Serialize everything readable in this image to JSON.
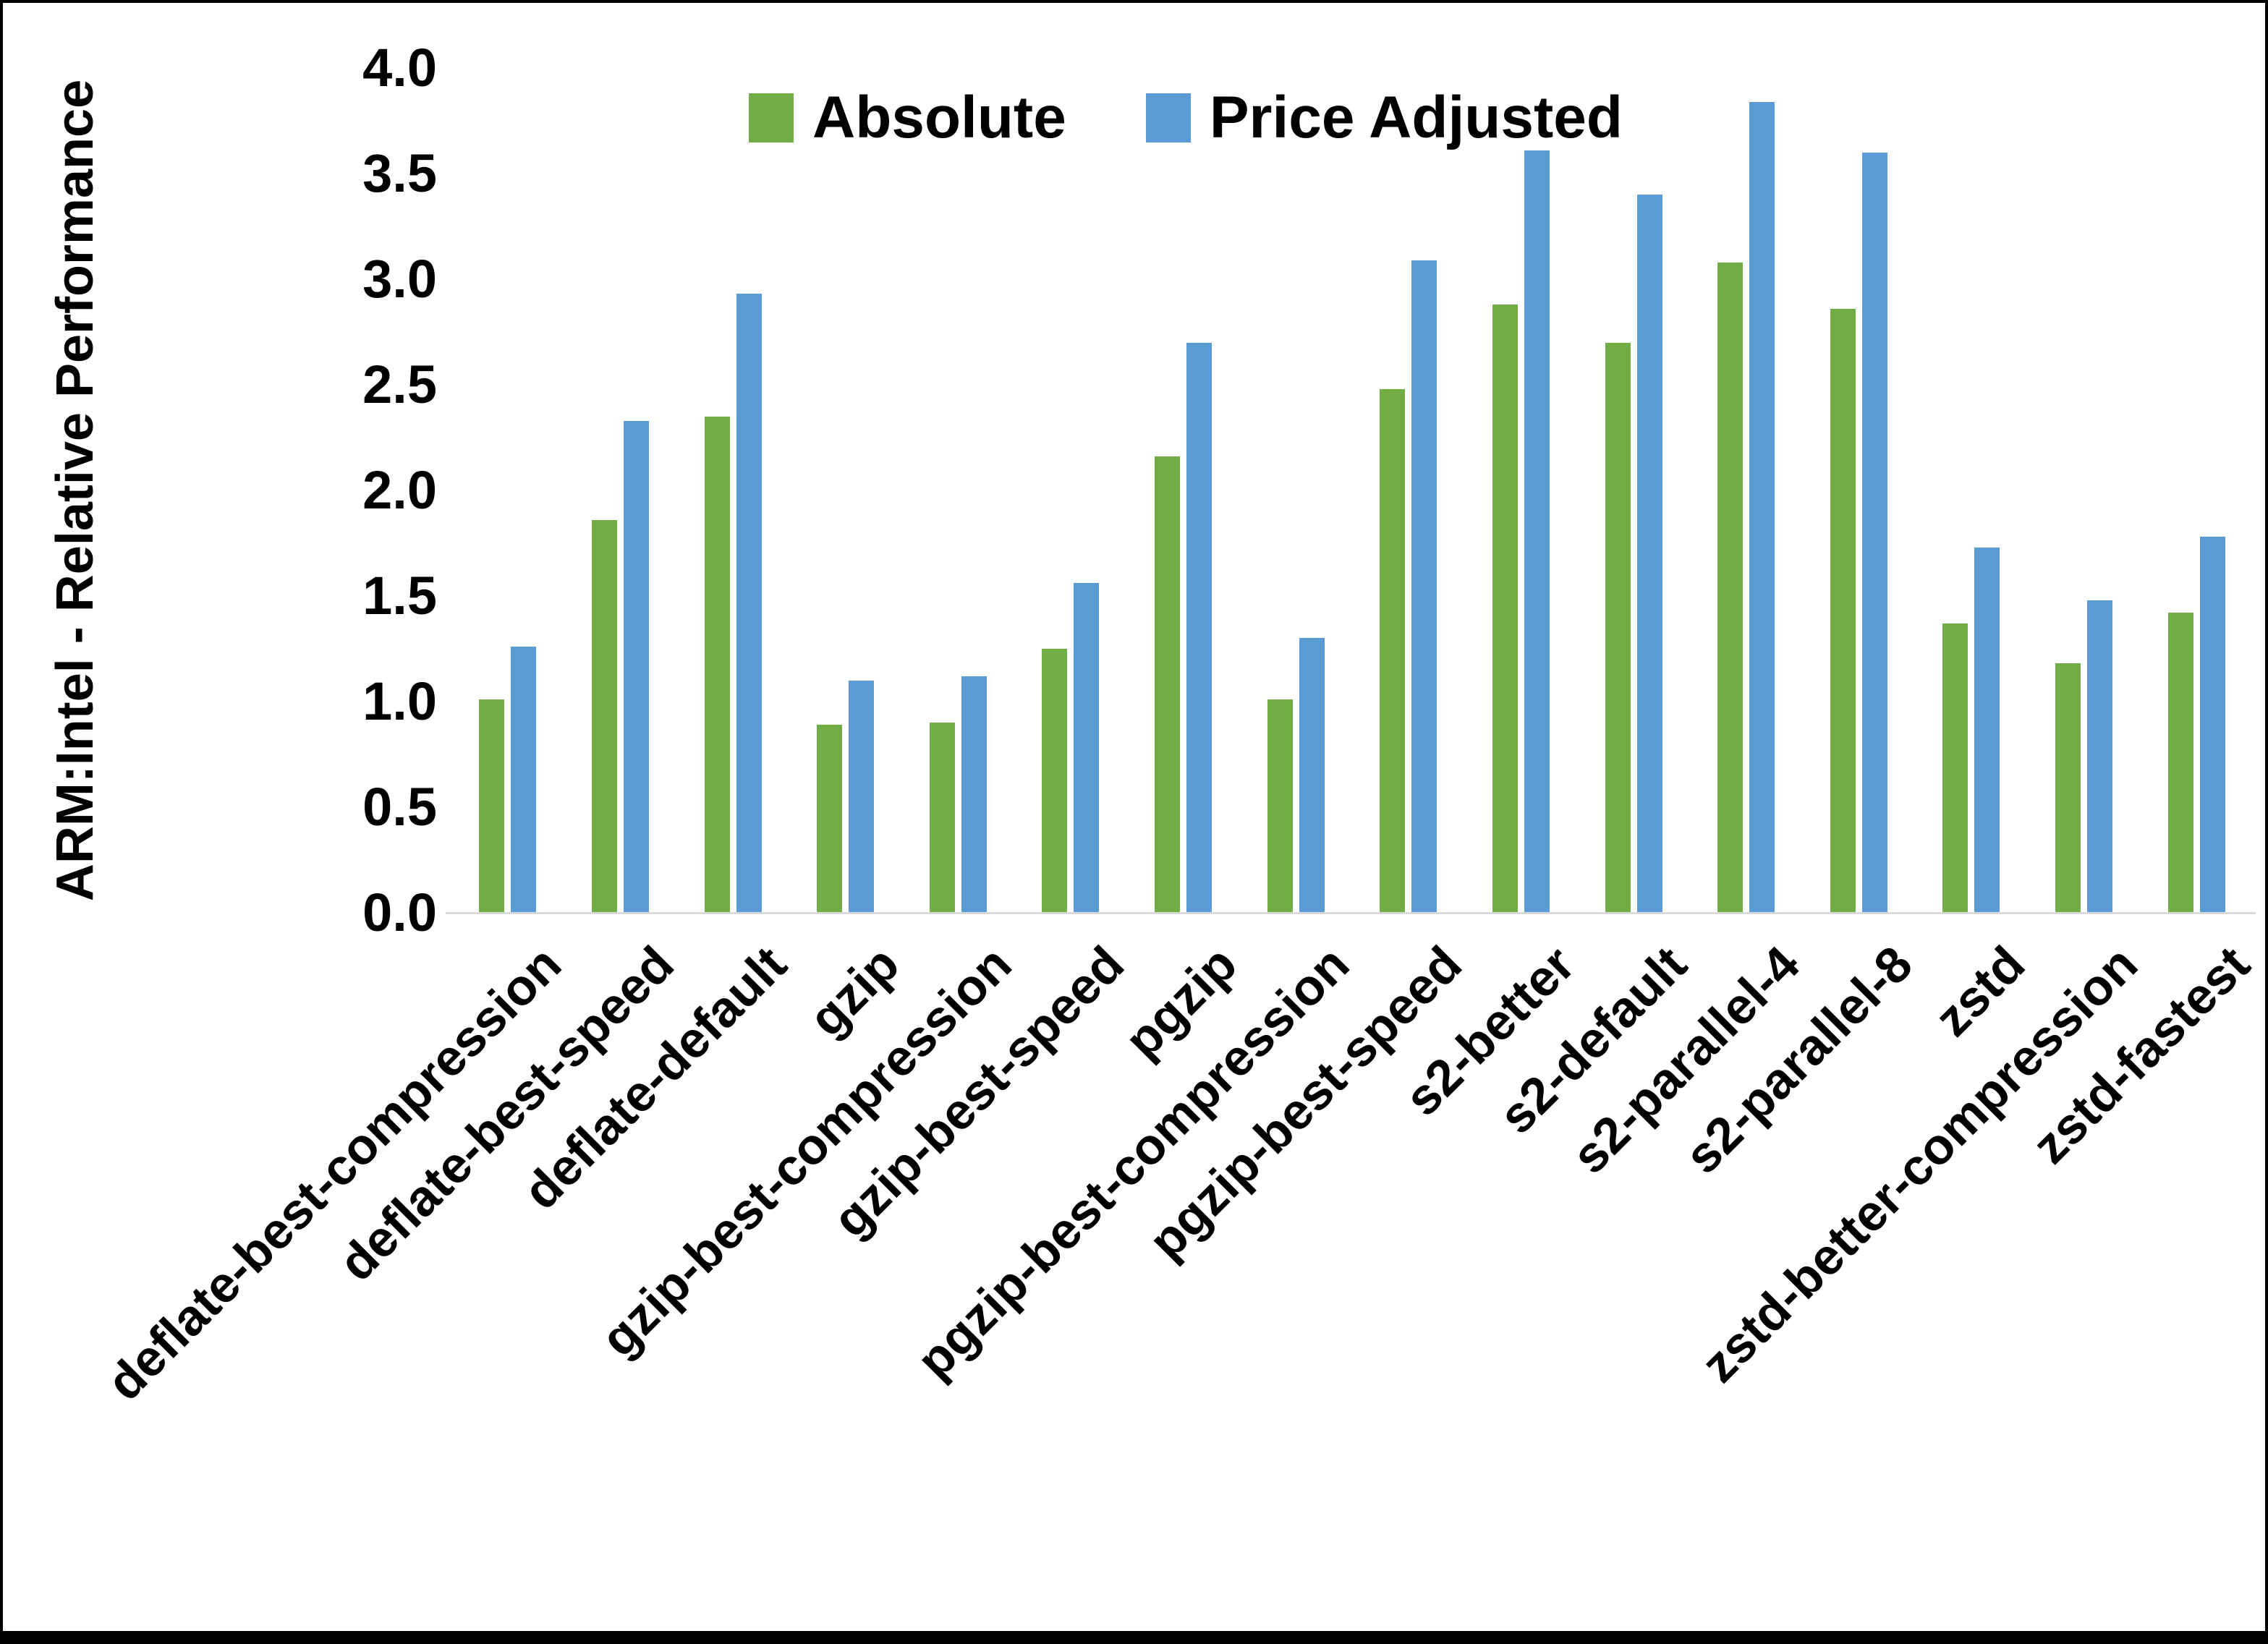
{
  "figure": {
    "background_color": "#ffffff",
    "border_color": "#000000",
    "axis_line_color": "#D9D9D9",
    "text_color": "#000000"
  },
  "y_axis": {
    "title": "ARM:Intel - Relative Performance",
    "tick_labels": [
      "0.0",
      "0.5",
      "1.0",
      "1.5",
      "2.0",
      "2.5",
      "3.0",
      "3.5",
      "4.0"
    ]
  },
  "legend": {
    "items": [
      {
        "label": "Absolute",
        "color": "#70AD47"
      },
      {
        "label": "Price Adjusted",
        "color": "#5B9BD5"
      }
    ],
    "position": "top-center"
  },
  "chart_data": {
    "type": "bar",
    "title": "",
    "xlabel": "",
    "ylabel": "ARM:Intel - Relative Performance",
    "ylim": [
      0,
      4
    ],
    "ytick_step": 0.5,
    "grid": false,
    "legend_position": "top-center",
    "categories": [
      "deflate-best-compression",
      "deflate-best-speed",
      "deflate-default",
      "gzip",
      "gzip-best-compression",
      "gzip-best-speed",
      "pgzip",
      "pgzip-best-compression",
      "pgzip-best-speed",
      "s2-better",
      "s2-default",
      "s2-parallel-4",
      "s2-parallel-8",
      "zstd",
      "zstd-better-compression",
      "zstd-fastest"
    ],
    "series": [
      {
        "name": "Absolute",
        "color": "#70AD47",
        "values": [
          1.01,
          1.86,
          2.35,
          0.89,
          0.9,
          1.25,
          2.16,
          1.01,
          2.48,
          2.88,
          2.7,
          3.08,
          2.86,
          1.37,
          1.18,
          1.42
        ]
      },
      {
        "name": "Price Adjusted",
        "color": "#5B9BD5",
        "values": [
          1.26,
          2.33,
          2.93,
          1.1,
          1.12,
          1.56,
          2.7,
          1.3,
          3.09,
          3.61,
          3.4,
          3.84,
          3.6,
          1.73,
          1.48,
          1.78
        ]
      }
    ]
  }
}
